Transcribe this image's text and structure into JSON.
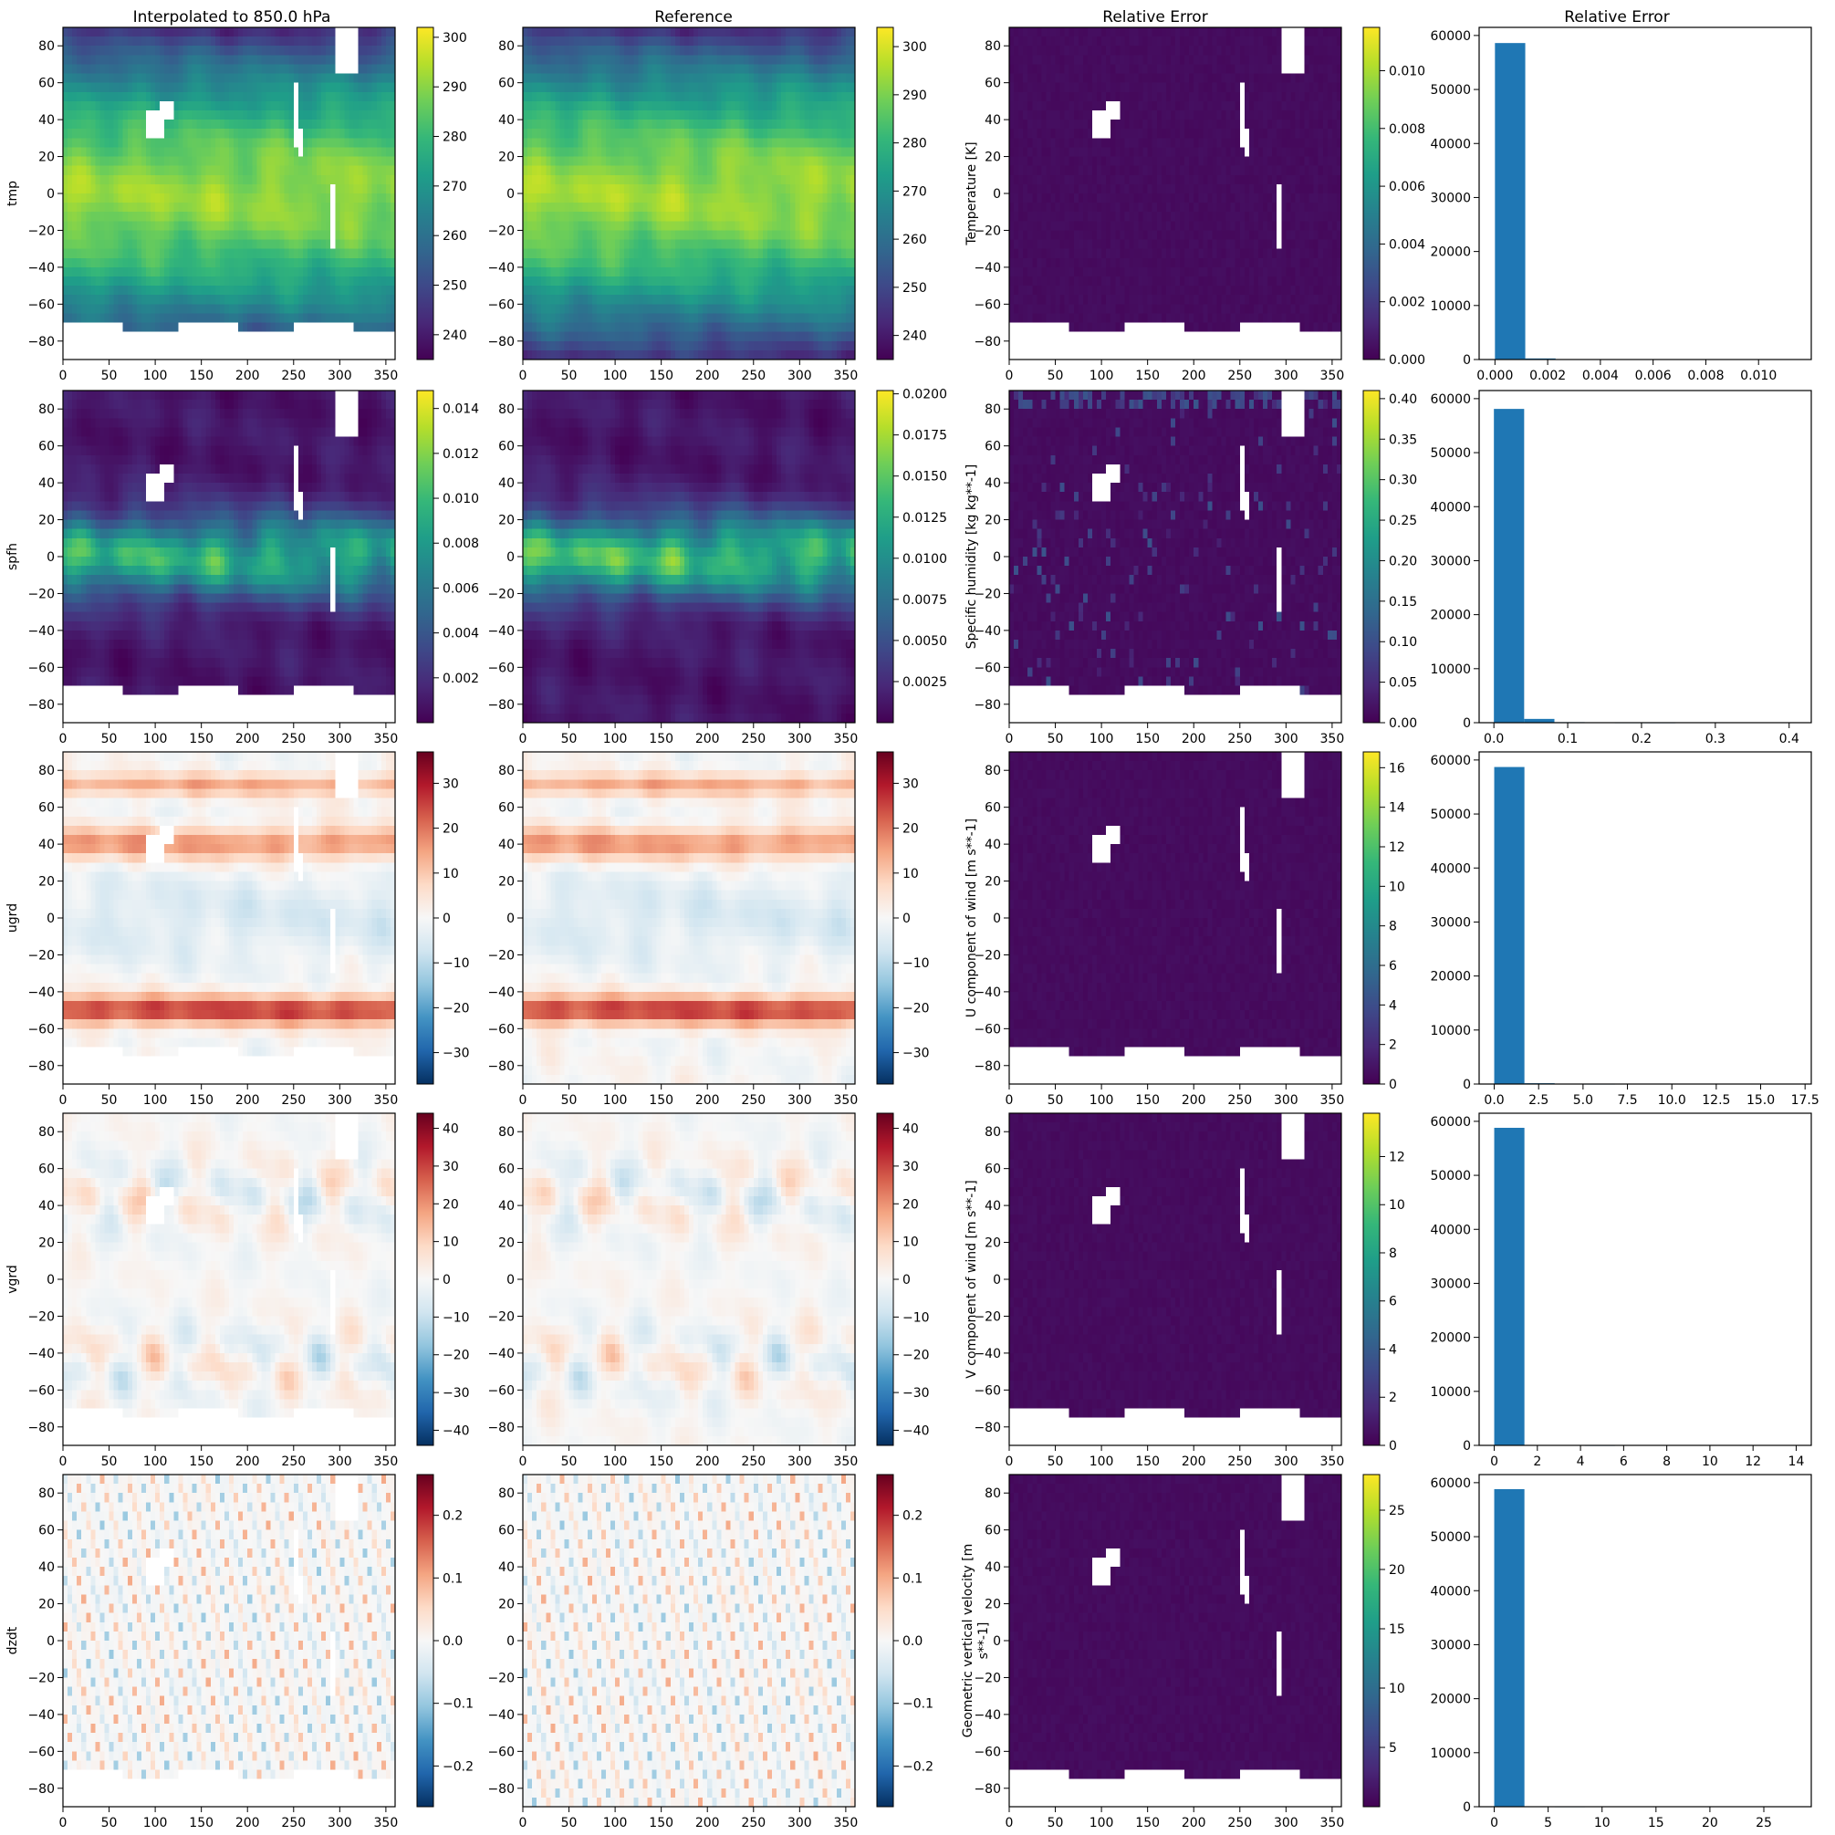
{
  "figure": {
    "column_titles": [
      "Interpolated to 850.0 hPa",
      "Reference",
      "Relative Error",
      "Relative Error"
    ]
  },
  "colors": {
    "viridis": [
      "#440154",
      "#482878",
      "#3e4989",
      "#31688e",
      "#26828e",
      "#1f9e89",
      "#35b779",
      "#6ece58",
      "#b5de2b",
      "#fde725"
    ],
    "rdbu_r": [
      "#053061",
      "#2166ac",
      "#4393c3",
      "#92c5de",
      "#d1e5f0",
      "#f7f7f7",
      "#fddbc7",
      "#f4a582",
      "#d6604d",
      "#b2182b",
      "#67001f"
    ],
    "histogram_bar": "#1f77b4",
    "mask": "#ffffff"
  },
  "chart_data": [
    {
      "type": "heatmap",
      "variable": "tmp",
      "colormap": "viridis",
      "xlim": [
        0,
        360
      ],
      "ylim": [
        -90,
        90
      ],
      "x_ticks": [
        "0",
        "50",
        "100",
        "150",
        "200",
        "250",
        "300",
        "350"
      ],
      "y_ticks": [
        "80",
        "60",
        "40",
        "20",
        "0",
        "−20",
        "−40",
        "−60",
        "−80"
      ],
      "interpolated": {
        "colorbar_ticks": [
          "300",
          "290",
          "280",
          "270",
          "260",
          "250",
          "240"
        ],
        "clim": [
          235,
          302
        ]
      },
      "reference": {
        "colorbar_label": "Temperature [K]",
        "colorbar_ticks": [
          "300",
          "290",
          "280",
          "270",
          "260",
          "250",
          "240"
        ],
        "clim": [
          235,
          304
        ]
      },
      "error_map": {
        "colorbar_ticks": [
          "0.010",
          "0.008",
          "0.006",
          "0.004",
          "0.002",
          "0.000"
        ],
        "clim": [
          0,
          0.0115
        ]
      },
      "histogram": {
        "type": "bar",
        "xlim": [
          -0.0006,
          0.012
        ],
        "ylim": [
          0,
          61500
        ],
        "x_ticks": [
          "0.000",
          "0.002",
          "0.004",
          "0.006",
          "0.008",
          "0.010"
        ],
        "y_ticks": [
          "0",
          "10000",
          "20000",
          "30000",
          "40000",
          "50000",
          "60000"
        ],
        "bin_width": 0.00115,
        "counts": [
          58600,
          200,
          20,
          0,
          0,
          0,
          0,
          0,
          0,
          0
        ]
      }
    },
    {
      "type": "heatmap",
      "variable": "spfh",
      "colormap": "viridis",
      "xlim": [
        0,
        360
      ],
      "ylim": [
        -90,
        90
      ],
      "x_ticks": [
        "0",
        "50",
        "100",
        "150",
        "200",
        "250",
        "300",
        "350"
      ],
      "y_ticks": [
        "80",
        "60",
        "40",
        "20",
        "0",
        "−20",
        "−40",
        "−60",
        "−80"
      ],
      "interpolated": {
        "colorbar_ticks": [
          "0.014",
          "0.012",
          "0.010",
          "0.008",
          "0.006",
          "0.004",
          "0.002"
        ],
        "clim": [
          0.0,
          0.0148
        ]
      },
      "reference": {
        "colorbar_label": "Specific humidity [kg kg**-1]",
        "colorbar_ticks": [
          "0.0200",
          "0.0175",
          "0.0150",
          "0.0125",
          "0.0100",
          "0.0075",
          "0.0050",
          "0.0025"
        ],
        "clim": [
          0.0,
          0.0202
        ]
      },
      "error_map": {
        "colorbar_ticks": [
          "0.40",
          "0.35",
          "0.30",
          "0.25",
          "0.20",
          "0.15",
          "0.10",
          "0.05",
          "0.00"
        ],
        "clim": [
          0,
          0.41
        ]
      },
      "histogram": {
        "type": "bar",
        "xlim": [
          -0.02,
          0.43
        ],
        "ylim": [
          0,
          61500
        ],
        "x_ticks": [
          "0.0",
          "0.1",
          "0.2",
          "0.3",
          "0.4"
        ],
        "y_ticks": [
          "0",
          "10000",
          "20000",
          "30000",
          "40000",
          "50000",
          "60000"
        ],
        "bin_width": 0.041,
        "counts": [
          58100,
          700,
          100,
          30,
          10,
          5,
          0,
          0,
          0,
          0
        ]
      }
    },
    {
      "type": "heatmap",
      "variable": "ugrd",
      "colormap": "rdbu_r",
      "xlim": [
        0,
        360
      ],
      "ylim": [
        -90,
        90
      ],
      "x_ticks": [
        "0",
        "50",
        "100",
        "150",
        "200",
        "250",
        "300",
        "350"
      ],
      "y_ticks": [
        "80",
        "60",
        "40",
        "20",
        "0",
        "−20",
        "−40",
        "−60",
        "−80"
      ],
      "interpolated": {
        "colorbar_ticks": [
          "30",
          "20",
          "10",
          "0",
          "−10",
          "−20",
          "−30"
        ],
        "clim": [
          -37,
          37
        ]
      },
      "reference": {
        "colorbar_label": "U component of wind [m s**-1]",
        "colorbar_ticks": [
          "30",
          "20",
          "10",
          "0",
          "−10",
          "−20",
          "−30"
        ],
        "clim": [
          -37,
          37
        ]
      },
      "error_map": {
        "colorbar_ticks": [
          "16",
          "14",
          "12",
          "10",
          "8",
          "6",
          "4",
          "2",
          "0"
        ],
        "clim": [
          0,
          16.8
        ]
      },
      "histogram": {
        "type": "bar",
        "xlim": [
          -0.85,
          17.85
        ],
        "ylim": [
          0,
          61500
        ],
        "x_ticks": [
          "0.0",
          "2.5",
          "5.0",
          "7.5",
          "10.0",
          "12.5",
          "15.0",
          "17.5"
        ],
        "y_ticks": [
          "0",
          "10000",
          "20000",
          "30000",
          "40000",
          "50000",
          "60000"
        ],
        "bin_width": 1.7,
        "counts": [
          58700,
          150,
          60,
          10,
          0,
          0,
          0,
          0,
          0,
          0
        ]
      }
    },
    {
      "type": "heatmap",
      "variable": "vgrd",
      "colormap": "rdbu_r",
      "xlim": [
        0,
        360
      ],
      "ylim": [
        -90,
        90
      ],
      "x_ticks": [
        "0",
        "50",
        "100",
        "150",
        "200",
        "250",
        "300",
        "350"
      ],
      "y_ticks": [
        "80",
        "60",
        "40",
        "20",
        "0",
        "−20",
        "−40",
        "−60",
        "−80"
      ],
      "interpolated": {
        "colorbar_ticks": [
          "40",
          "30",
          "20",
          "10",
          "0",
          "−10",
          "−20",
          "−30",
          "−40"
        ],
        "clim": [
          -44,
          44
        ]
      },
      "reference": {
        "colorbar_label": "V component of wind [m s**-1]",
        "colorbar_ticks": [
          "40",
          "30",
          "20",
          "10",
          "0",
          "−10",
          "−20",
          "−30",
          "−40"
        ],
        "clim": [
          -44,
          44
        ]
      },
      "error_map": {
        "colorbar_ticks": [
          "12",
          "10",
          "8",
          "6",
          "4",
          "2",
          "0"
        ],
        "clim": [
          0,
          13.8
        ]
      },
      "histogram": {
        "type": "bar",
        "xlim": [
          -0.7,
          14.7
        ],
        "ylim": [
          0,
          61500
        ],
        "x_ticks": [
          "0",
          "2",
          "4",
          "6",
          "8",
          "10",
          "12",
          "14"
        ],
        "y_ticks": [
          "0",
          "10000",
          "20000",
          "30000",
          "40000",
          "50000",
          "60000"
        ],
        "bin_width": 1.4,
        "counts": [
          58800,
          60,
          20,
          5,
          0,
          0,
          0,
          0,
          0,
          0
        ]
      }
    },
    {
      "type": "heatmap",
      "variable": "dzdt",
      "colormap": "rdbu_r",
      "xlim": [
        0,
        360
      ],
      "ylim": [
        -90,
        90
      ],
      "x_ticks": [
        "0",
        "50",
        "100",
        "150",
        "200",
        "250",
        "300",
        "350"
      ],
      "y_ticks": [
        "80",
        "60",
        "40",
        "20",
        "0",
        "−20",
        "−40",
        "−60",
        "−80"
      ],
      "interpolated": {
        "colorbar_ticks": [
          "0.2",
          "0.1",
          "0.0",
          "−0.1",
          "−0.2"
        ],
        "clim": [
          -0.265,
          0.265
        ]
      },
      "reference": {
        "colorbar_label": "Geometric vertical velocity [m s**-1]",
        "colorbar_ticks": [
          "0.2",
          "0.1",
          "0.0",
          "−0.1",
          "−0.2"
        ],
        "clim": [
          -0.265,
          0.265
        ]
      },
      "error_map": {
        "colorbar_ticks": [
          "25",
          "20",
          "15",
          "10",
          "5"
        ],
        "clim": [
          0,
          28
        ]
      },
      "histogram": {
        "type": "bar",
        "xlim": [
          -1.4,
          29.4
        ],
        "ylim": [
          0,
          61500
        ],
        "x_ticks": [
          "0",
          "5",
          "10",
          "15",
          "20",
          "25"
        ],
        "y_ticks": [
          "0",
          "10000",
          "20000",
          "30000",
          "40000",
          "50000",
          "60000"
        ],
        "bin_width": 2.8,
        "counts": [
          58800,
          40,
          10,
          0,
          0,
          0,
          0,
          0,
          0,
          0
        ]
      }
    }
  ]
}
